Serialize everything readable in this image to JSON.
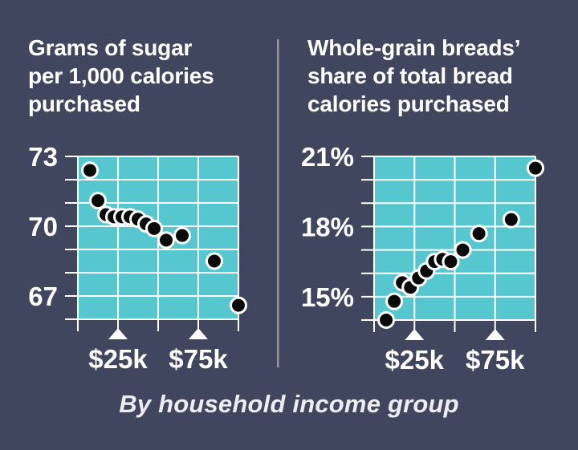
{
  "caption": "By household income group",
  "colors": {
    "background": "#41465F",
    "plot_fill": "#57C7CF",
    "grid": "#FFFFFF",
    "dot_fill": "#0A0A0A",
    "dot_outline": "#FFFFFF",
    "axis_text": "#FFFFFF",
    "divider": "#97979D",
    "triangle": "#FFFFFF"
  },
  "chart_data": [
    {
      "type": "scatter",
      "title": "Grams of sugar\nper 1,000 calories\npurchased",
      "x_income_thousands": [
        7.5,
        12.5,
        17.5,
        22.5,
        27.5,
        32.5,
        37.5,
        42.5,
        47.5,
        55,
        65,
        85,
        100
      ],
      "values": [
        72.4,
        71.1,
        70.5,
        70.4,
        70.4,
        70.4,
        70.3,
        70.1,
        69.9,
        69.4,
        69.6,
        68.5,
        66.6
      ],
      "xlim": [
        0,
        100
      ],
      "ylim": [
        66,
        73
      ],
      "grid_step_x": 25,
      "grid_step_y": 1,
      "yticks": [
        {
          "value": 73,
          "label": "73"
        },
        {
          "value": 70,
          "label": "70"
        },
        {
          "value": 67,
          "label": "67"
        }
      ],
      "xticks": [
        {
          "value": 25,
          "label": "$25k"
        },
        {
          "value": 75,
          "label": "$75k"
        }
      ]
    },
    {
      "type": "scatter",
      "title": "Whole-grain breads’\nshare of total bread\ncalories purchased",
      "x_income_thousands": [
        7.5,
        12.5,
        17.5,
        22.5,
        27.5,
        32.5,
        37.5,
        42.5,
        47.5,
        55,
        65,
        85,
        100
      ],
      "values": [
        14.0,
        14.8,
        15.6,
        15.4,
        15.8,
        16.1,
        16.5,
        16.6,
        16.5,
        17.0,
        17.7,
        18.3,
        20.5
      ],
      "xlim": [
        0,
        100
      ],
      "ylim": [
        14,
        21
      ],
      "grid_step_x": 25,
      "grid_step_y": 1,
      "yticks": [
        {
          "value": 21,
          "label": "21%"
        },
        {
          "value": 18,
          "label": "18%"
        },
        {
          "value": 15,
          "label": "15%"
        }
      ],
      "xticks": [
        {
          "value": 25,
          "label": "$25k"
        },
        {
          "value": 75,
          "label": "$75k"
        }
      ]
    }
  ]
}
